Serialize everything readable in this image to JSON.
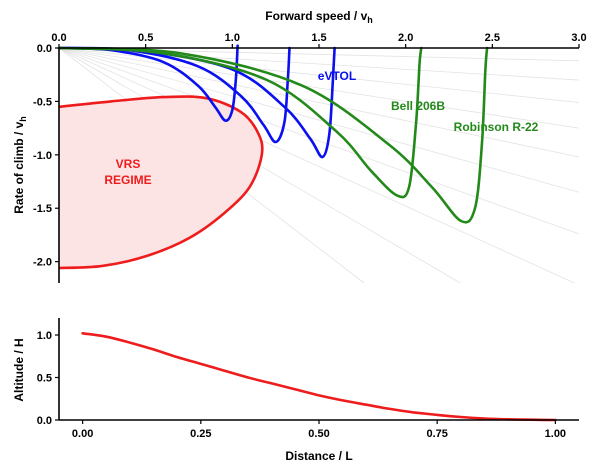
{
  "chart_data": [
    {
      "type": "line",
      "xlabel": "Forward speed / v",
      "xlabel_sub": "h",
      "ylabel": "Rate of climb / v",
      "ylabel_sub": "h",
      "xlim": [
        0,
        3.0
      ],
      "ylim": [
        -2.2,
        0
      ],
      "x_ticks": [
        "0.0",
        "0.5",
        "1.0",
        "1.5",
        "2.0",
        "2.5",
        "3.0"
      ],
      "x_tick_values": [
        0,
        0.5,
        1.0,
        1.5,
        2.0,
        2.5,
        3.0
      ],
      "y_ticks": [
        "0.0",
        "-0.5",
        "-1.0",
        "-1.5",
        "-2.0"
      ],
      "y_tick_values": [
        0,
        -0.5,
        -1.0,
        -1.5,
        -2.0
      ],
      "guide_line_slopes": [
        0.04,
        0.1,
        0.17,
        0.25,
        0.34,
        0.45,
        0.58,
        0.74,
        0.95,
        1.25
      ],
      "vrs_region": {
        "label_lines": [
          "VRS",
          "REGIME"
        ],
        "color": "#ee1c1c",
        "fill": "#fde4e4",
        "x": [
          0.0,
          0.3,
          0.6,
          0.85,
          1.05,
          1.15,
          1.17,
          1.1,
          0.95,
          0.75,
          0.5,
          0.25,
          0.0
        ],
        "y": [
          -0.55,
          -0.5,
          -0.46,
          -0.47,
          -0.6,
          -0.8,
          -1.0,
          -1.3,
          -1.55,
          -1.78,
          -1.95,
          -2.04,
          -2.06
        ]
      },
      "series": [
        {
          "color": "#0a10f0",
          "x": [
            0,
            0.3,
            0.6,
            0.8,
            0.9,
            0.96,
            1.0,
            1.02,
            1.03,
            1.03
          ],
          "y": [
            0,
            -0.02,
            -0.13,
            -0.35,
            -0.55,
            -0.68,
            -0.58,
            -0.3,
            0.0,
            0.0
          ]
        },
        {
          "color": "#0a10f0",
          "x": [
            0,
            0.4,
            0.8,
            1.05,
            1.18,
            1.25,
            1.3,
            1.32,
            1.33
          ],
          "y": [
            0,
            -0.02,
            -0.17,
            -0.45,
            -0.72,
            -0.88,
            -0.7,
            -0.3,
            0.0
          ]
        },
        {
          "name": "eVTOL",
          "color": "#0a10f0",
          "x": [
            0,
            0.5,
            1.0,
            1.3,
            1.45,
            1.52,
            1.56,
            1.58,
            1.59
          ],
          "y": [
            0,
            -0.03,
            -0.2,
            -0.55,
            -0.85,
            -1.02,
            -0.8,
            -0.3,
            0.0
          ]
        },
        {
          "name": "Bell 206B",
          "color": "#238a1a",
          "x": [
            0,
            0.6,
            1.2,
            1.6,
            1.8,
            1.95,
            2.02,
            2.06,
            2.08,
            2.09
          ],
          "y": [
            0,
            -0.05,
            -0.3,
            -0.78,
            -1.15,
            -1.38,
            -1.3,
            -0.7,
            -0.15,
            0.0
          ]
        },
        {
          "name": "Robinson R-22",
          "color": "#238a1a",
          "x": [
            0,
            0.7,
            1.4,
            1.9,
            2.15,
            2.32,
            2.4,
            2.44,
            2.46,
            2.47
          ],
          "y": [
            0,
            -0.05,
            -0.35,
            -0.9,
            -1.3,
            -1.62,
            -1.5,
            -0.9,
            -0.2,
            0.0
          ]
        }
      ]
    },
    {
      "type": "line",
      "xlabel": "Distance / L",
      "ylabel": "Altitude / H",
      "xlim": [
        -0.05,
        1.05
      ],
      "ylim": [
        0,
        1.2
      ],
      "x_ticks": [
        "0.00",
        "0.25",
        "0.50",
        "0.75",
        "1.00"
      ],
      "x_tick_values": [
        0,
        0.25,
        0.5,
        0.75,
        1.0
      ],
      "y_ticks": [
        "0.0",
        "0.5",
        "1.0"
      ],
      "y_tick_values": [
        0,
        0.5,
        1.0
      ],
      "series": [
        {
          "color": "#ee1c1c",
          "x": [
            0.0,
            0.05,
            0.1,
            0.15,
            0.2,
            0.25,
            0.3,
            0.35,
            0.4,
            0.45,
            0.5,
            0.55,
            0.6,
            0.65,
            0.7,
            0.75,
            0.8,
            0.85,
            0.9,
            0.95,
            1.0
          ],
          "y": [
            1.02,
            0.98,
            0.91,
            0.83,
            0.74,
            0.66,
            0.58,
            0.5,
            0.43,
            0.36,
            0.29,
            0.23,
            0.18,
            0.13,
            0.09,
            0.06,
            0.035,
            0.018,
            0.008,
            0.003,
            0.0
          ]
        }
      ]
    }
  ]
}
